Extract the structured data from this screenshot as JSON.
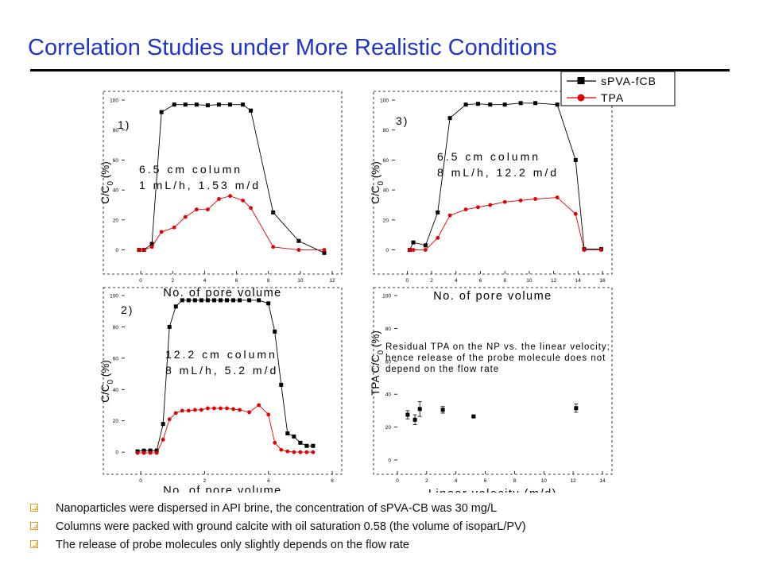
{
  "title": "Correlation Studies under More Realistic Conditions",
  "colors": {
    "title": "#1f35c8",
    "series_a": "#000000",
    "series_b": "#e00000",
    "bullet": "#e89a1c"
  },
  "legend": [
    "sPVA-fCB",
    "TPA"
  ],
  "bullets": [
    "Nanoparticles were dispersed in API brine, the concentration of sPVA-CB was 30 mg/L",
    "Columns were packed with ground calcite with oil saturation 0.58 (the volume of isoparL/PV)",
    "The release of probe molecules only slightly depends on the flow rate"
  ],
  "chart_data": [
    {
      "type": "line",
      "panel": "1)",
      "annotation": [
        "6.5 cm column",
        "1 mL/h, 1.53 m/d"
      ],
      "xlabel": "No. of pore volume",
      "ylabel": "C/C0 (%)",
      "xlim": [
        -1,
        12
      ],
      "ylim": [
        -5,
        100
      ],
      "xticks": [
        0,
        2,
        4,
        6,
        8,
        10,
        12
      ],
      "yticks": [
        0,
        20,
        40,
        60,
        80,
        100
      ],
      "series": [
        {
          "name": "sPVA-fCB",
          "x": [
            -0.1,
            0.2,
            0.7,
            1.3,
            2.1,
            2.8,
            3.5,
            4.2,
            4.9,
            5.6,
            6.4,
            6.9,
            8.3,
            9.9,
            11.5
          ],
          "y": [
            0,
            0,
            4,
            92,
            97,
            97,
            97,
            96.5,
            97,
            97,
            97,
            93,
            25,
            6,
            -2
          ]
        },
        {
          "name": "TPA",
          "x": [
            -0.1,
            0.2,
            0.7,
            1.3,
            2.1,
            2.8,
            3.5,
            4.2,
            4.9,
            5.6,
            6.4,
            6.9,
            8.3,
            9.9,
            11.5
          ],
          "y": [
            0,
            0,
            2,
            12,
            15,
            22,
            27,
            27,
            34,
            36,
            33,
            28,
            2,
            0,
            0
          ]
        }
      ]
    },
    {
      "type": "line",
      "panel": "3)",
      "annotation": [
        "6.5 cm column",
        "8 mL/h, 12.2 m/d"
      ],
      "xlabel": "No. of pore volume",
      "ylabel": "C/C0 (%)",
      "xlim": [
        -1,
        16
      ],
      "ylim": [
        -5,
        100
      ],
      "xticks": [
        0,
        2,
        4,
        6,
        8,
        10,
        12,
        14,
        16
      ],
      "yticks": [
        0,
        20,
        40,
        60,
        80,
        100
      ],
      "series": [
        {
          "name": "sPVA-fCB",
          "x": [
            0.2,
            0.5,
            1.5,
            2.5,
            3.5,
            4.8,
            5.8,
            6.8,
            8,
            9.3,
            10.5,
            12.3,
            13.8,
            14.5,
            15.9
          ],
          "y": [
            0,
            5,
            3,
            25,
            88,
            97,
            97.5,
            97,
            97,
            98,
            98,
            97,
            60,
            0.5,
            0.5
          ]
        },
        {
          "name": "TPA",
          "x": [
            0.2,
            0.5,
            1.5,
            2.5,
            3.5,
            4.8,
            5.8,
            6.8,
            8,
            9.3,
            10.5,
            12.3,
            13.8,
            14.5,
            15.9
          ],
          "y": [
            0,
            0,
            0,
            8,
            23,
            27,
            28.5,
            30,
            32,
            33,
            34,
            35,
            24,
            0,
            0
          ]
        }
      ]
    },
    {
      "type": "line",
      "panel": "2)",
      "annotation": [
        "12.2 cm column",
        "8 mL/h, 5.2 m/d"
      ],
      "xlabel": "No. of pore volume",
      "ylabel": "C/C0 (%)",
      "xlim": [
        -0.5,
        6
      ],
      "ylim": [
        -5,
        100
      ],
      "xticks": [
        0,
        2,
        4,
        6
      ],
      "yticks": [
        0,
        20,
        40,
        60,
        80,
        100
      ],
      "series": [
        {
          "name": "sPVA-fCB",
          "x": [
            -0.1,
            0.1,
            0.3,
            0.5,
            0.7,
            0.9,
            1.1,
            1.3,
            1.5,
            1.7,
            1.9,
            2.1,
            2.3,
            2.5,
            2.7,
            2.9,
            3.1,
            3.4,
            3.7,
            4.0,
            4.2,
            4.4,
            4.6,
            4.8,
            5.0,
            5.2,
            5.4
          ],
          "y": [
            0.5,
            1,
            1,
            1,
            18,
            80,
            93,
            97,
            97,
            97,
            97,
            97,
            97,
            97,
            97,
            97,
            97,
            97,
            97,
            95,
            77,
            43,
            12,
            10,
            6,
            4,
            4
          ]
        },
        {
          "name": "TPA",
          "x": [
            -0.1,
            0.1,
            0.3,
            0.5,
            0.7,
            0.9,
            1.1,
            1.3,
            1.5,
            1.7,
            1.9,
            2.1,
            2.3,
            2.5,
            2.7,
            2.9,
            3.1,
            3.4,
            3.7,
            4.0,
            4.2,
            4.4,
            4.6,
            4.8,
            5.0,
            5.2,
            5.4
          ],
          "y": [
            -0.5,
            -0.5,
            -0.5,
            -0.5,
            8,
            21,
            25,
            26.5,
            26.5,
            27,
            27,
            28,
            28,
            28,
            28,
            27.5,
            27,
            25.5,
            30,
            24,
            6,
            1.5,
            0.5,
            0,
            0,
            0,
            0
          ]
        }
      ]
    },
    {
      "type": "scatter",
      "annotation": [
        "Residual TPA on the NP vs. the linear velocity;",
        "hence release of the probe molecule does not",
        "depend on the flow rate"
      ],
      "xlabel": "Linear velocity (m/d)",
      "ylabel": "TPA C/C0 (%)",
      "xlim": [
        0,
        14
      ],
      "ylim": [
        0,
        100
      ],
      "xticks": [
        0,
        2,
        4,
        6,
        8,
        10,
        12,
        14
      ],
      "yticks": [
        0,
        20,
        40,
        60,
        80,
        100
      ],
      "series": [
        {
          "name": "",
          "x": [
            0.7,
            1.2,
            1.53,
            3.1,
            5.2,
            12.2
          ],
          "y": [
            27.5,
            24.5,
            31,
            30.5,
            26.5,
            31.5
          ],
          "err": [
            2.5,
            3,
            4.5,
            2,
            0.5,
            2.5
          ]
        }
      ]
    }
  ]
}
